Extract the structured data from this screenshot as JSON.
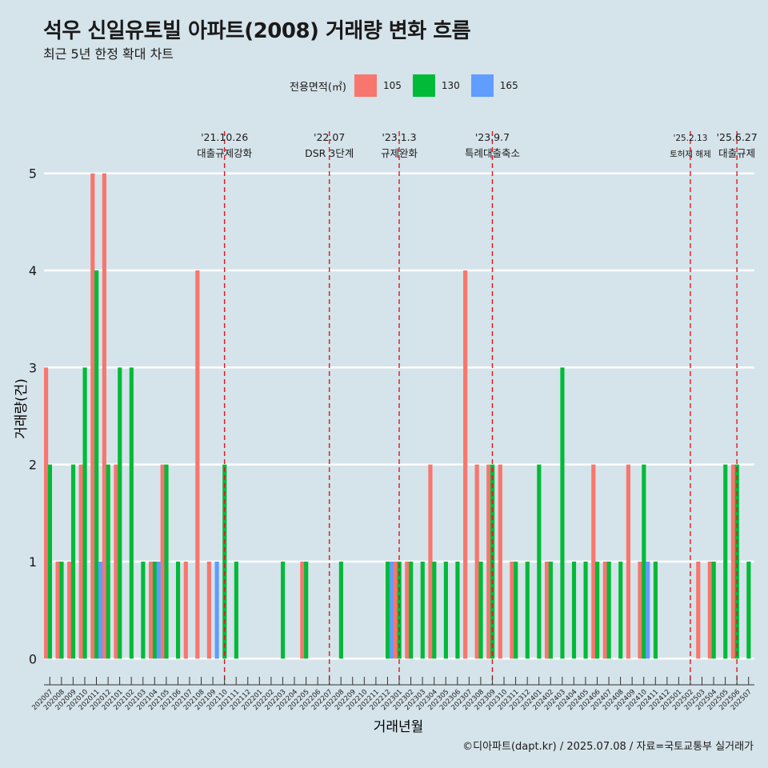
{
  "page": {
    "title": "석우 신일유토빌 아파트(2008) 거래량 변화 흐름",
    "subtitle": "최근 5년 한정 확대 차트",
    "caption": "©디아파트(dapt.kr) / 2025.07.08 / 자료=국토교통부 실거래가"
  },
  "legend": {
    "title": "전용면적(㎡)",
    "items": [
      {
        "label": "105",
        "color": "#f8766d"
      },
      {
        "label": "130",
        "color": "#00ba38"
      },
      {
        "label": "165",
        "color": "#619cff"
      }
    ]
  },
  "chart_data": {
    "type": "bar",
    "xlabel": "거래년월",
    "ylabel": "거래량(건)",
    "ylim": [
      -0.22,
      5.55
    ],
    "yticks": [
      0,
      1,
      2,
      3,
      4,
      5
    ],
    "grid": true,
    "legend_position": "top",
    "categories": [
      "202007",
      "202008",
      "202009",
      "202010",
      "202011",
      "202012",
      "202101",
      "202102",
      "202103",
      "202104",
      "202105",
      "202106",
      "202107",
      "202108",
      "202109",
      "202110",
      "202111",
      "202112",
      "202201",
      "202202",
      "202203",
      "202204",
      "202205",
      "202206",
      "202207",
      "202208",
      "202209",
      "202210",
      "202211",
      "202212",
      "202301",
      "202302",
      "202303",
      "202304",
      "202305",
      "202306",
      "202307",
      "202308",
      "202309",
      "202310",
      "202311",
      "202312",
      "202401",
      "202402",
      "202403",
      "202404",
      "202405",
      "202406",
      "202407",
      "202408",
      "202409",
      "202410",
      "202411",
      "202412",
      "202501",
      "202502",
      "202503",
      "202504",
      "202505",
      "202506",
      "202507"
    ],
    "series": [
      {
        "name": "105",
        "color": "#f8766d",
        "values": [
          3,
          1,
          1,
          2,
          5,
          5,
          2,
          0,
          0,
          1,
          2,
          0,
          1,
          4,
          1,
          0,
          0,
          0,
          0,
          0,
          0,
          0,
          1,
          0,
          0,
          0,
          0,
          0,
          0,
          0,
          1,
          1,
          0,
          2,
          0,
          0,
          4,
          2,
          2,
          2,
          1,
          0,
          0,
          1,
          0,
          0,
          0,
          2,
          1,
          0,
          2,
          1,
          0,
          0,
          0,
          0,
          1,
          1,
          0,
          2,
          0
        ]
      },
      {
        "name": "130",
        "color": "#00ba38",
        "values": [
          2,
          1,
          2,
          3,
          4,
          2,
          3,
          3,
          1,
          1,
          2,
          1,
          0,
          0,
          0,
          2,
          1,
          0,
          0,
          0,
          1,
          0,
          1,
          0,
          0,
          1,
          0,
          0,
          0,
          1,
          1,
          1,
          1,
          1,
          1,
          1,
          0,
          1,
          2,
          0,
          1,
          1,
          2,
          1,
          3,
          1,
          1,
          1,
          1,
          1,
          0,
          2,
          1,
          0,
          0,
          0,
          0,
          1,
          2,
          2,
          1
        ]
      },
      {
        "name": "165",
        "color": "#619cff",
        "values": [
          0,
          0,
          0,
          0,
          1,
          0,
          0,
          0,
          0,
          1,
          0,
          0,
          0,
          0,
          1,
          0,
          0,
          0,
          0,
          0,
          0,
          0,
          0,
          0,
          0,
          0,
          0,
          0,
          0,
          1,
          0,
          0,
          0,
          0,
          0,
          0,
          0,
          0,
          0,
          0,
          0,
          0,
          0,
          0,
          0,
          0,
          0,
          0,
          0,
          0,
          0,
          1,
          0,
          0,
          0,
          0,
          0,
          0,
          0,
          0,
          0
        ]
      }
    ],
    "annotations": [
      {
        "x": 15.5,
        "date": "'21.10.26",
        "text": "대출규제강화"
      },
      {
        "x": 24.5,
        "date": "'22.07",
        "text": "DSR 3단계"
      },
      {
        "x": 30.5,
        "date": "'23.1.3",
        "text": "규제완화"
      },
      {
        "x": 38.5,
        "date": "'23.9.7",
        "text": "특례대출축소"
      },
      {
        "x": 55.5,
        "date": "'25.2.13",
        "text": "토허제 해제"
      },
      {
        "x": 59.5,
        "date": "'25.6.27",
        "text": "대출규제"
      }
    ]
  }
}
